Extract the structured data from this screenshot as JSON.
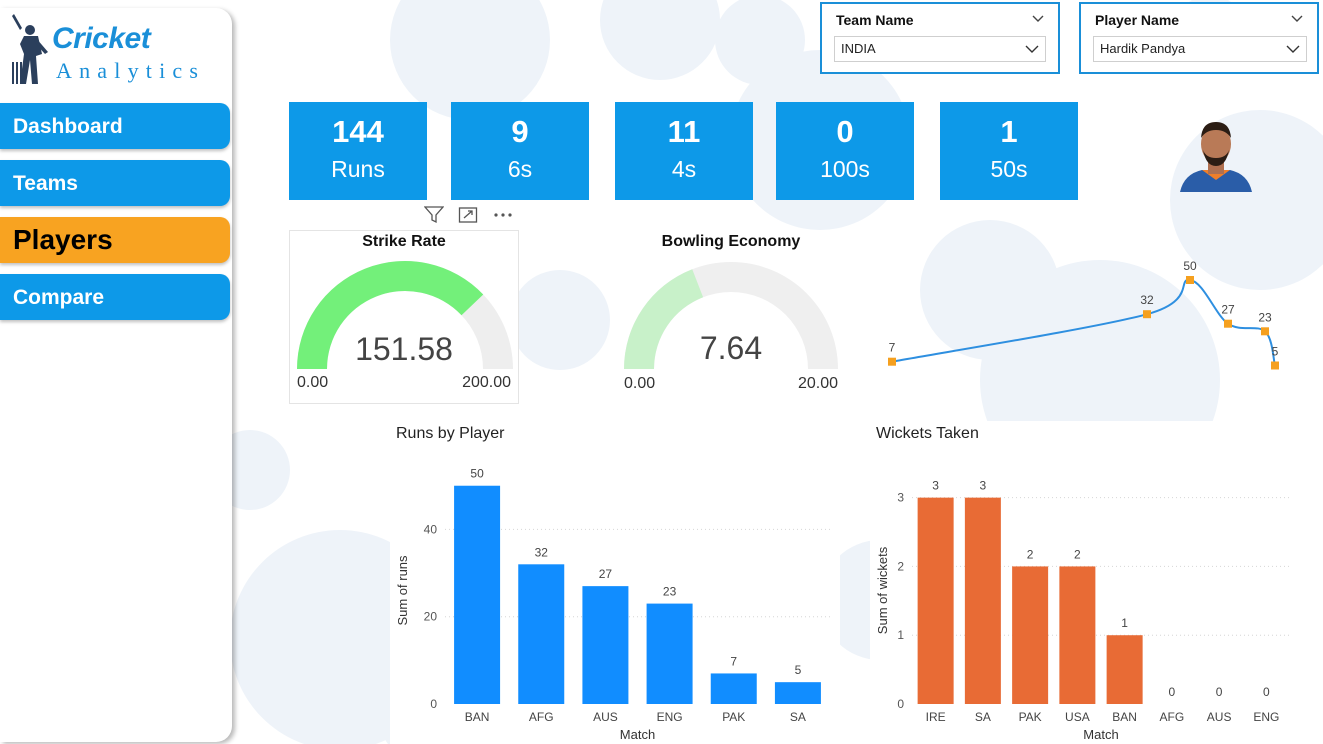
{
  "logo": {
    "title": "Cricket",
    "subtitle": "Analytics"
  },
  "nav": [
    {
      "label": "Dashboard"
    },
    {
      "label": "Teams"
    },
    {
      "label": "Players"
    },
    {
      "label": "Compare"
    }
  ],
  "slicers": {
    "team": {
      "title": "Team Name",
      "value": "INDIA"
    },
    "player": {
      "title": "Player Name",
      "value": "Hardik Pandya"
    }
  },
  "kpis": [
    {
      "value": "144",
      "label": "Runs"
    },
    {
      "value": "9",
      "label": "6s"
    },
    {
      "value": "11",
      "label": "4s"
    },
    {
      "value": "0",
      "label": "100s"
    },
    {
      "value": "1",
      "label": "50s"
    }
  ],
  "gauges": {
    "strike_rate": {
      "title": "Strike Rate",
      "value": 151.58,
      "value_text": "151.58",
      "min": "0.00",
      "max": "200.00",
      "min_num": 0,
      "max_num": 200,
      "color": "#73f07a"
    },
    "economy": {
      "title": "Bowling Economy",
      "value": 7.64,
      "value_text": "7.64",
      "min": "0.00",
      "max": "20.00",
      "min_num": 0,
      "max_num": 20,
      "color": "#c8f1c9"
    }
  },
  "colors": {
    "accent": "#0d99e8",
    "active": "#f8a321",
    "wickets": "#e86b35",
    "runs": "#118dff",
    "line": "#2e8fe0",
    "marker": "#f5a01f"
  },
  "chart_data": [
    {
      "type": "line",
      "values": [
        7,
        32,
        50,
        27,
        23,
        5
      ],
      "data_labels": [
        "7",
        "32",
        "50",
        "27",
        "23",
        "5"
      ]
    },
    {
      "type": "bar",
      "title": "Runs by Player",
      "categories": [
        "BAN",
        "AFG",
        "AUS",
        "ENG",
        "PAK",
        "SA"
      ],
      "values": [
        50,
        32,
        27,
        23,
        7,
        5
      ],
      "xlabel": "Match",
      "ylabel": "Sum of runs",
      "ylim": [
        0,
        52
      ],
      "yticks": [
        0,
        20,
        40
      ],
      "grid": true
    },
    {
      "type": "bar",
      "title": "Wickets Taken",
      "categories": [
        "IRE",
        "SA",
        "PAK",
        "USA",
        "BAN",
        "AFG",
        "AUS",
        "ENG"
      ],
      "values": [
        3,
        3,
        2,
        2,
        1,
        0,
        0,
        0
      ],
      "xlabel": "Match",
      "ylabel": "Sum of wickets",
      "ylim": [
        0,
        3.3
      ],
      "yticks": [
        0,
        1,
        2,
        3
      ],
      "grid": true
    }
  ]
}
